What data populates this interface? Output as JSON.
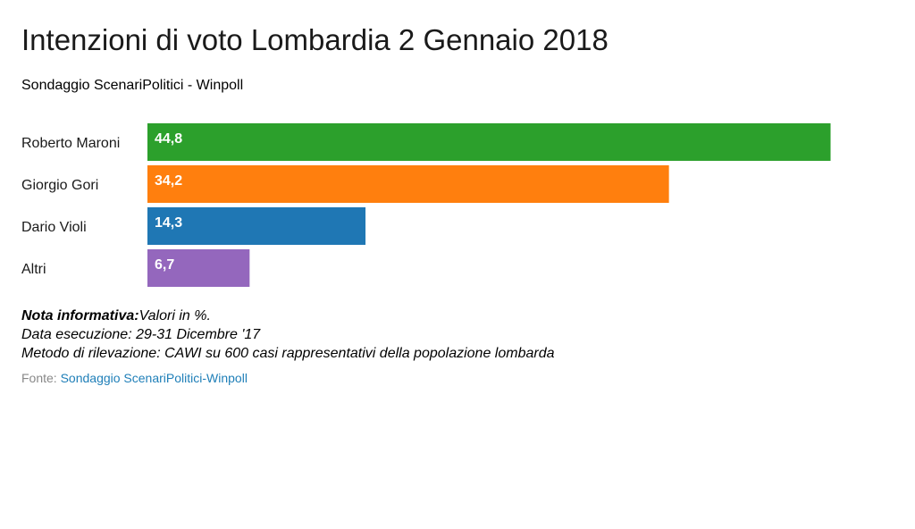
{
  "chart_data": {
    "type": "bar",
    "orientation": "horizontal",
    "title": "Intenzioni di voto Lombardia 2 Gennaio 2018",
    "subtitle": "Sondaggio ScenariPolitici - Winpoll",
    "categories": [
      "Roberto Maroni",
      "Giorgio Gori",
      "Dario Violi",
      "Altri"
    ],
    "values": [
      44.8,
      34.2,
      14.3,
      6.7
    ],
    "value_labels": [
      "44,8",
      "34,2",
      "14,3",
      "6,7"
    ],
    "colors": [
      "#2ca02c",
      "#ff7f0e",
      "#1f77b4",
      "#9467bd"
    ],
    "xlim": [
      0,
      46
    ],
    "grid": false
  },
  "notes": {
    "nota_label": "Nota informativa:",
    "nota_text": "Valori in %.",
    "data_esecuzione": "Data esecuzione: 29-31 Dicembre '17",
    "metodo": "Metodo di rilevazione: CAWI su 600 casi rappresentativi della popolazione lombarda"
  },
  "source": {
    "label": "Fonte:",
    "link_text": "Sondaggio ScenariPolitici-Winpoll"
  }
}
